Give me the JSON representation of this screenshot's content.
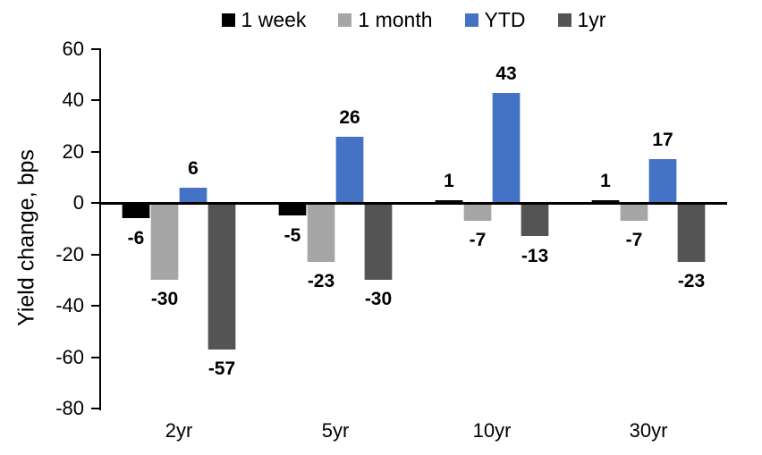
{
  "chart_data": {
    "type": "bar",
    "title": "",
    "xlabel": "",
    "ylabel": "Yield change, bps",
    "categories": [
      "2yr",
      "5yr",
      "10yr",
      "30yr"
    ],
    "series": [
      {
        "name": "1 week",
        "color": "#000000",
        "values": [
          -6,
          -5,
          1,
          1
        ]
      },
      {
        "name": "1 month",
        "color": "#A6A6A6",
        "values": [
          -30,
          -23,
          -7,
          -7
        ]
      },
      {
        "name": "YTD",
        "color": "#4472C4",
        "values": [
          6,
          26,
          43,
          17
        ]
      },
      {
        "name": "1yr",
        "color": "#545454",
        "values": [
          -57,
          -30,
          -13,
          -23
        ]
      }
    ],
    "ylim": [
      -80,
      60
    ],
    "yticks": [
      60,
      40,
      20,
      0,
      -20,
      -40,
      -60,
      -80
    ],
    "grid": false,
    "legend_position": "top",
    "data_labels": "outside_end",
    "axis_color": "#000000",
    "background": "#FFFFFF"
  }
}
